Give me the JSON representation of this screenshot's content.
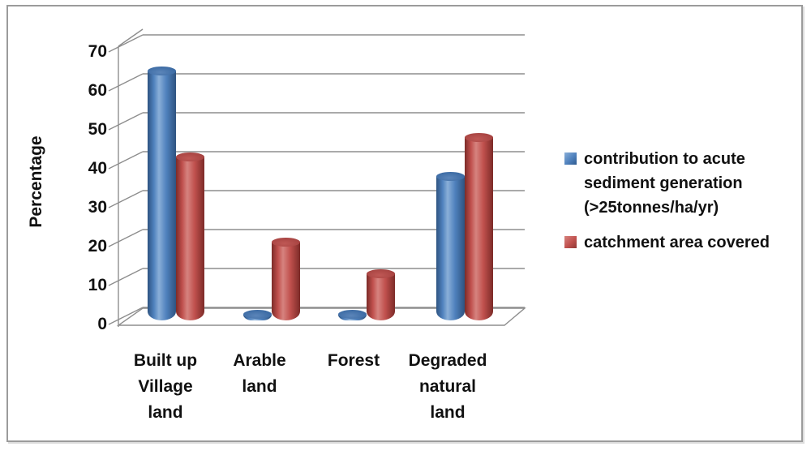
{
  "figure": {
    "ylabel": "Percentage"
  },
  "chart_data": {
    "type": "bar",
    "style": "3d-cylinder",
    "title": "",
    "xlabel": "",
    "ylabel": "Percentage",
    "ylim": [
      0,
      70
    ],
    "yticks": [
      0,
      10,
      20,
      30,
      40,
      50,
      60,
      70
    ],
    "grid": true,
    "legend_position": "right",
    "categories": [
      "Built up Village land",
      "Arable land",
      "Forest",
      "Degraded natural land"
    ],
    "category_label_lines": [
      [
        "Built up",
        "Village",
        "land"
      ],
      [
        "Arable",
        "land"
      ],
      [
        "Forest"
      ],
      [
        "Degraded",
        "natural",
        "land"
      ]
    ],
    "series": [
      {
        "name": "contribution to acute sediment generation (>25tonnes/ha/yr)",
        "legend_lines": [
          "contribution to acute",
          "sediment generation",
          "(>25tonnes/ha/yr)"
        ],
        "color": "#4F81BD",
        "values": [
          63,
          0.5,
          0.5,
          36
        ]
      },
      {
        "name": "catchment area covered",
        "legend_lines": [
          "catchment area covered"
        ],
        "color": "#C0504D",
        "values": [
          41,
          19,
          11,
          46
        ]
      }
    ]
  }
}
